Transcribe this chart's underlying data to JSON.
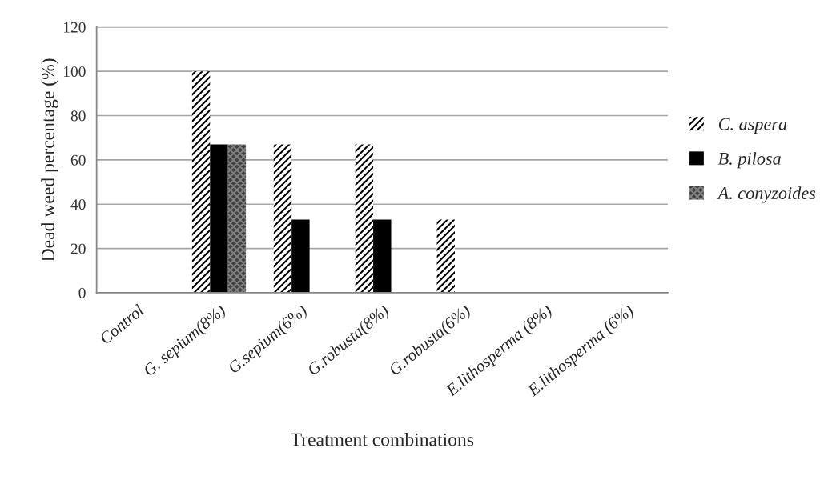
{
  "chart_data": {
    "type": "bar",
    "xlabel": "Treatment combinations",
    "ylabel": "Dead weed percentage (%)",
    "categories": [
      "Control",
      "G. sepium(8%)",
      "G.sepium(6%)",
      "G.robusta(8%)",
      "G.robusta(6%)",
      "E.lithosperma (8%)",
      "E.lithosperma (6%)"
    ],
    "series": [
      {
        "name": "C. aspera",
        "color": "#ffffff",
        "values": [
          0,
          100,
          67,
          67,
          33,
          0,
          0
        ]
      },
      {
        "name": "B. pilosa",
        "color": "#000000",
        "values": [
          0,
          67,
          33,
          33,
          0,
          0,
          0
        ]
      },
      {
        "name": "A. conyzoides",
        "color": "#404040",
        "values": [
          0,
          67,
          0,
          0,
          0,
          0,
          0
        ]
      }
    ],
    "ylim": [
      0,
      120
    ],
    "yticks": [
      0,
      20,
      40,
      60,
      80,
      100,
      120
    ],
    "grid": "y",
    "legend": "right"
  }
}
